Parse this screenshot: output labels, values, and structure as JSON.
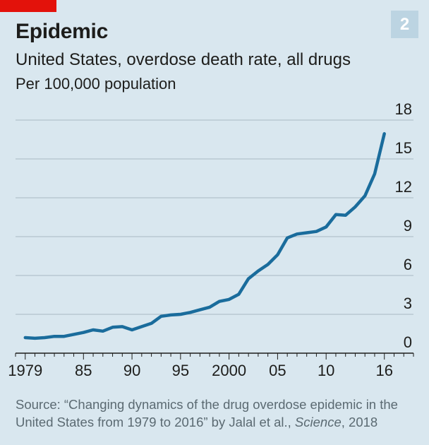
{
  "header": {
    "badge_number": "2",
    "title": "Epidemic",
    "subtitle": "United States, overdose death rate, all drugs",
    "unit_label": "Per 100,000 population"
  },
  "source": {
    "prefix": "Source: “Changing dynamics of the drug overdose epidemic in the United States from 1979 to 2016” by Jalal et al., ",
    "journal": "Science",
    "suffix": ", 2018"
  },
  "colors": {
    "background": "#d9e7ef",
    "line": "#1a6c9c",
    "accent_red": "#e3120b",
    "gridline": "#a9b9c3"
  },
  "chart_data": {
    "type": "line",
    "title": "United States, overdose death rate, all drugs",
    "ylabel": "Per 100,000 population",
    "xlabel": "",
    "ylim": [
      0,
      18
    ],
    "xlim": [
      1978,
      2019
    ],
    "yticks": [
      0,
      3,
      6,
      9,
      12,
      15,
      18
    ],
    "xticks": [
      {
        "value": 1979,
        "label": "1979"
      },
      {
        "value": 1985,
        "label": "85"
      },
      {
        "value": 1990,
        "label": "90"
      },
      {
        "value": 1995,
        "label": "95"
      },
      {
        "value": 2000,
        "label": "2000"
      },
      {
        "value": 2005,
        "label": "05"
      },
      {
        "value": 2010,
        "label": "10"
      },
      {
        "value": 2016,
        "label": "16"
      }
    ],
    "grid": true,
    "series": [
      {
        "name": "Overdose death rate",
        "x": [
          1979,
          1980,
          1981,
          1982,
          1983,
          1984,
          1985,
          1986,
          1987,
          1988,
          1989,
          1990,
          1991,
          1992,
          1993,
          1994,
          1995,
          1996,
          1997,
          1998,
          1999,
          2000,
          2001,
          2002,
          2003,
          2004,
          2005,
          2006,
          2007,
          2008,
          2009,
          2010,
          2011,
          2012,
          2013,
          2014,
          2015,
          2016
        ],
        "values": [
          1.2,
          1.15,
          1.2,
          1.3,
          1.3,
          1.45,
          1.6,
          1.8,
          1.7,
          2.0,
          2.05,
          1.8,
          2.05,
          2.3,
          2.85,
          2.95,
          3.0,
          3.15,
          3.35,
          3.55,
          4.0,
          4.15,
          4.55,
          5.75,
          6.35,
          6.85,
          7.6,
          8.9,
          9.2,
          9.3,
          9.4,
          9.75,
          10.7,
          10.65,
          11.3,
          12.15,
          13.85,
          16.95
        ]
      }
    ]
  }
}
